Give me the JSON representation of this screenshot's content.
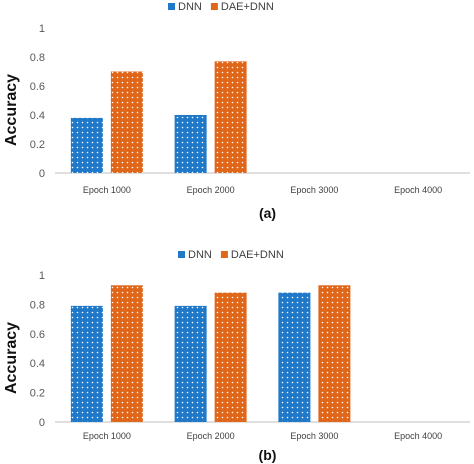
{
  "colors": {
    "dnn": "#1f78c8",
    "dae_dnn": "#e0661a",
    "dots": "#ffffff",
    "axis": "#bfbfbf"
  },
  "chart_data": [
    {
      "type": "bar",
      "panel_label": "(a)",
      "ylabel": "Accuracy",
      "ylim": [
        0,
        1
      ],
      "yticks": [
        "0",
        "0.2",
        "0.4",
        "0.6",
        "0.8",
        "1"
      ],
      "legend_position": "top-center",
      "categories": [
        "Epoch 1000",
        "Epoch 2000",
        "Epoch 3000",
        "Epoch 4000"
      ],
      "series": [
        {
          "name": "DNN",
          "color": "#1f78c8",
          "values": [
            0.38,
            0.4,
            null,
            null
          ]
        },
        {
          "name": "DAE+DNN",
          "color": "#e0661a",
          "values": [
            0.7,
            0.77,
            null,
            null
          ]
        }
      ]
    },
    {
      "type": "bar",
      "panel_label": "(b)",
      "ylabel": "Accuracy",
      "ylim": [
        0,
        1
      ],
      "yticks": [
        "0",
        "0.2",
        "0.4",
        "0.6",
        "0.8",
        "1"
      ],
      "legend_position": "top-center",
      "categories": [
        "Epoch 1000",
        "Epoch 2000",
        "Epoch 3000",
        "Epoch 4000"
      ],
      "series": [
        {
          "name": "DNN",
          "color": "#1f78c8",
          "values": [
            0.79,
            0.79,
            0.88,
            null
          ]
        },
        {
          "name": "DAE+DNN",
          "color": "#e0661a",
          "values": [
            0.93,
            0.88,
            0.93,
            null
          ]
        }
      ]
    }
  ]
}
